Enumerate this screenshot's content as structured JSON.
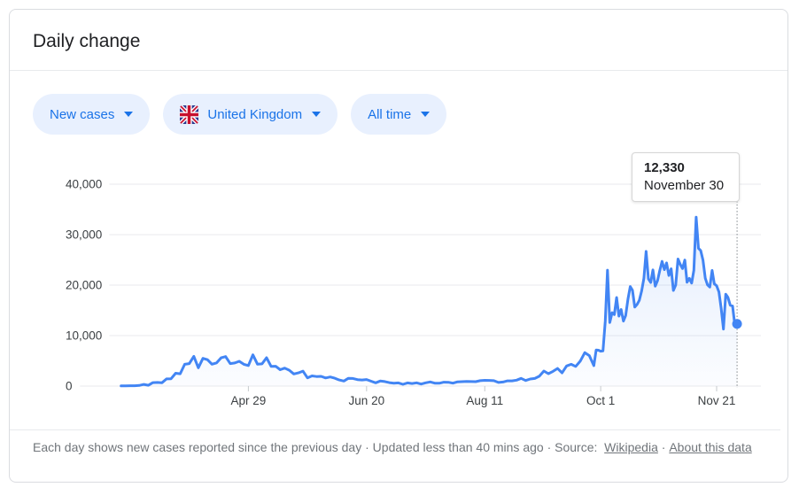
{
  "card": {
    "title": "Daily change",
    "filters": [
      {
        "label": "New cases"
      },
      {
        "label": "United Kingdom",
        "flag": "uk"
      },
      {
        "label": "All time"
      }
    ]
  },
  "tooltip": {
    "value": "12,330",
    "date": "November 30"
  },
  "footer": {
    "description": "Each day shows new cases reported since the previous day",
    "separator": " · ",
    "updated": "Updated less than 40 mins ago",
    "source_label": "Source: ",
    "source_link": "Wikipedia",
    "about_link": "About this data"
  },
  "colors": {
    "accent_blue": "#1a73e8",
    "line_blue": "#4285f4",
    "chip_background": "#e8f0fe",
    "grid": "#e8eaed",
    "axis_text": "#3c4043",
    "footer_text": "#70757a"
  },
  "chart_data": {
    "type": "line",
    "title": "Daily change",
    "ylabel": "",
    "xlabel": "",
    "grid": "horizontal",
    "legend": "none",
    "line_color": "#4285f4",
    "ylim": [
      0,
      43000
    ],
    "y_ticks": [
      0,
      10000,
      20000,
      30000,
      40000
    ],
    "y_tick_labels": [
      "0",
      "10,000",
      "20,000",
      "30,000",
      "40,000"
    ],
    "x_tick_labels": [
      "Apr 29",
      "Jun 20",
      "Aug 11",
      "Oct 1",
      "Nov 21"
    ],
    "hover_point": {
      "date": "Nov 30",
      "value": 12330
    },
    "series": [
      {
        "name": "New cases",
        "dates": [
          "Mar 4",
          "Mar 6",
          "Mar 8",
          "Mar 10",
          "Mar 12",
          "Mar 14",
          "Mar 16",
          "Mar 18",
          "Mar 20",
          "Mar 22",
          "Mar 24",
          "Mar 26",
          "Mar 28",
          "Mar 30",
          "Apr 1",
          "Apr 3",
          "Apr 5",
          "Apr 7",
          "Apr 9",
          "Apr 11",
          "Apr 13",
          "Apr 15",
          "Apr 17",
          "Apr 19",
          "Apr 21",
          "Apr 23",
          "Apr 25",
          "Apr 27",
          "Apr 29",
          "May 1",
          "May 3",
          "May 5",
          "May 7",
          "May 9",
          "May 11",
          "May 13",
          "May 15",
          "May 17",
          "May 19",
          "May 21",
          "May 23",
          "May 25",
          "May 27",
          "May 29",
          "May 31",
          "Jun 2",
          "Jun 4",
          "Jun 6",
          "Jun 8",
          "Jun 10",
          "Jun 12",
          "Jun 14",
          "Jun 16",
          "Jun 18",
          "Jun 20",
          "Jun 22",
          "Jun 24",
          "Jun 26",
          "Jun 28",
          "Jun 30",
          "Jul 2",
          "Jul 4",
          "Jul 6",
          "Jul 8",
          "Jul 10",
          "Jul 12",
          "Jul 14",
          "Jul 16",
          "Jul 18",
          "Jul 20",
          "Jul 22",
          "Jul 24",
          "Jul 26",
          "Jul 28",
          "Jul 30",
          "Aug 1",
          "Aug 3",
          "Aug 5",
          "Aug 7",
          "Aug 9",
          "Aug 11",
          "Aug 13",
          "Aug 15",
          "Aug 17",
          "Aug 19",
          "Aug 21",
          "Aug 23",
          "Aug 25",
          "Aug 27",
          "Aug 29",
          "Aug 31",
          "Sep 2",
          "Sep 4",
          "Sep 6",
          "Sep 8",
          "Sep 10",
          "Sep 12",
          "Sep 14",
          "Sep 16",
          "Sep 18",
          "Sep 20",
          "Sep 22",
          "Sep 24",
          "Sep 26",
          "Sep 28",
          "Sep 29",
          "Sep 30",
          "Oct 1",
          "Oct 2",
          "Oct 3",
          "Oct 4",
          "Oct 5",
          "Oct 6",
          "Oct 7",
          "Oct 8",
          "Oct 9",
          "Oct 10",
          "Oct 11",
          "Oct 12",
          "Oct 13",
          "Oct 14",
          "Oct 15",
          "Oct 16",
          "Oct 17",
          "Oct 18",
          "Oct 19",
          "Oct 20",
          "Oct 21",
          "Oct 22",
          "Oct 23",
          "Oct 24",
          "Oct 25",
          "Oct 26",
          "Oct 27",
          "Oct 28",
          "Oct 29",
          "Oct 30",
          "Oct 31",
          "Nov 1",
          "Nov 2",
          "Nov 3",
          "Nov 4",
          "Nov 5",
          "Nov 6",
          "Nov 7",
          "Nov 8",
          "Nov 9",
          "Nov 10",
          "Nov 11",
          "Nov 12",
          "Nov 13",
          "Nov 14",
          "Nov 15",
          "Nov 16",
          "Nov 17",
          "Nov 18",
          "Nov 19",
          "Nov 20",
          "Nov 21",
          "Nov 22",
          "Nov 23",
          "Nov 24",
          "Nov 25",
          "Nov 26",
          "Nov 27",
          "Nov 28",
          "Nov 29",
          "Nov 30"
        ],
        "values": [
          34,
          46,
          64,
          77,
          130,
          342,
          152,
          676,
          714,
          665,
          1427,
          1452,
          2546,
          2433,
          4324,
          4450,
          5903,
          3634,
          5491,
          5233,
          4342,
          4603,
          5599,
          5850,
          4451,
          4583,
          4913,
          4309,
          4076,
          6201,
          4339,
          4406,
          5614,
          3896,
          3923,
          3242,
          3560,
          3142,
          2412,
          2615,
          2959,
          1625,
          2013,
          1887,
          1936,
          1613,
          1805,
          1557,
          1205,
          1003,
          1541,
          1514,
          1279,
          1218,
          1295,
          958,
          653,
          1006,
          901,
          689,
          576,
          624,
          352,
          630,
          512,
          650,
          398,
          642,
          827,
          580,
          560,
          768,
          747,
          581,
          846,
          880,
          938,
          892,
          871,
          1062,
          1148,
          1129,
          1077,
          713,
          812,
          1033,
          1041,
          1184,
          1522,
          1108,
          1406,
          1508,
          1940,
          2988,
          2460,
          2919,
          3497,
          2621,
          3991,
          4322,
          3899,
          4926,
          6634,
          6042,
          4044,
          7143,
          7108,
          6914,
          6968,
          12872,
          22961,
          12594,
          14542,
          14162,
          17540,
          13864,
          15166,
          12872,
          13972,
          17234,
          19724,
          18980,
          15650,
          16171,
          16982,
          18804,
          21331,
          26688,
          21242,
          20530,
          23012,
          19790,
          20890,
          22885,
          24701,
          23065,
          24405,
          21915,
          23254,
          18950,
          20018,
          25177,
          24141,
          23287,
          24957,
          20572,
          21350,
          20412,
          22950,
          33470,
          27301,
          26860,
          24962,
          21363,
          20051,
          19609,
          22915,
          20252,
          19875,
          18662,
          15450,
          11299,
          18213,
          17555,
          16022,
          15871,
          12155,
          12330
        ]
      }
    ]
  }
}
